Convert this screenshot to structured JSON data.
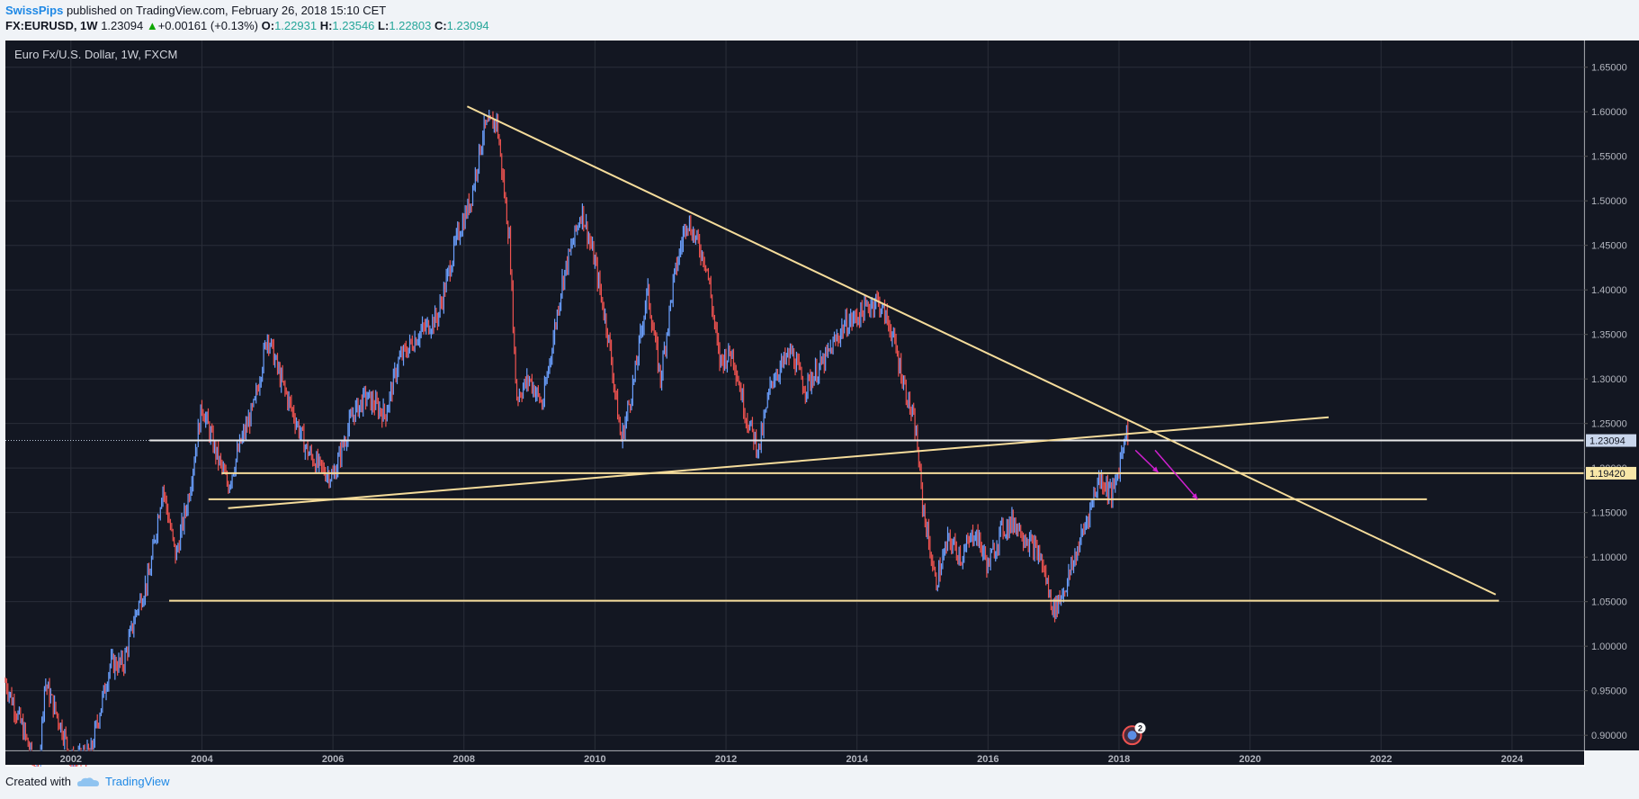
{
  "header": {
    "author": "SwissPips",
    "published_text": "published on TradingView.com, February 26, 2018 15:10 CET",
    "symbol": "FX:EURUSD, 1W",
    "last": "1.23094",
    "change": "+0.00161 (+0.13%)",
    "open_label": "O:",
    "open": "1.22931",
    "high_label": "H:",
    "high": "1.23546",
    "low_label": "L:",
    "low": "1.22803",
    "close_label": "C:",
    "close": "1.23094"
  },
  "footer": {
    "created_with": "Created with",
    "brand": "TradingView"
  },
  "colors": {
    "background": "#131722",
    "up": "#6ba0ff",
    "down": "#ef5350",
    "trendline": "#f5dc9b",
    "arrow": "#d020d0",
    "grid": "#2a2e39",
    "axis_text": "#b2b5be"
  },
  "chart_data": {
    "type": "candlestick",
    "title": "Euro Fx/U.S. Dollar, 1W, FXCM",
    "x_range": [
      2001.0,
      2025.1
    ],
    "ylim": [
      0.883,
      1.68
    ],
    "x_ticks": [
      "2002",
      "2004",
      "2006",
      "2008",
      "2010",
      "2012",
      "2014",
      "2016",
      "2018",
      "2020",
      "2022",
      "2024"
    ],
    "y_ticks": [
      "0.90000",
      "0.95000",
      "1.00000",
      "1.05000",
      "1.10000",
      "1.15000",
      "1.20000",
      "1.25000",
      "1.30000",
      "1.35000",
      "1.40000",
      "1.45000",
      "1.50000",
      "1.55000",
      "1.60000",
      "1.65000"
    ],
    "price_path": [
      [
        2001.0,
        0.96
      ],
      [
        2001.3,
        0.9
      ],
      [
        2001.5,
        0.85
      ],
      [
        2001.6,
        0.96
      ],
      [
        2001.9,
        0.9
      ],
      [
        2002.0,
        0.87
      ],
      [
        2002.3,
        0.88
      ],
      [
        2002.6,
        0.98
      ],
      [
        2002.8,
        0.98
      ],
      [
        2003.0,
        1.04
      ],
      [
        2003.2,
        1.08
      ],
      [
        2003.4,
        1.18
      ],
      [
        2003.6,
        1.1
      ],
      [
        2003.8,
        1.17
      ],
      [
        2004.0,
        1.27
      ],
      [
        2004.2,
        1.22
      ],
      [
        2004.4,
        1.18
      ],
      [
        2004.6,
        1.23
      ],
      [
        2004.8,
        1.27
      ],
      [
        2005.0,
        1.35
      ],
      [
        2005.2,
        1.3
      ],
      [
        2005.4,
        1.26
      ],
      [
        2005.6,
        1.22
      ],
      [
        2005.8,
        1.2
      ],
      [
        2006.0,
        1.19
      ],
      [
        2006.3,
        1.26
      ],
      [
        2006.5,
        1.28
      ],
      [
        2006.8,
        1.26
      ],
      [
        2007.0,
        1.32
      ],
      [
        2007.3,
        1.35
      ],
      [
        2007.6,
        1.37
      ],
      [
        2007.9,
        1.46
      ],
      [
        2008.1,
        1.5
      ],
      [
        2008.3,
        1.58
      ],
      [
        2008.5,
        1.59
      ],
      [
        2008.7,
        1.45
      ],
      [
        2008.8,
        1.28
      ],
      [
        2009.0,
        1.3
      ],
      [
        2009.2,
        1.27
      ],
      [
        2009.5,
        1.41
      ],
      [
        2009.8,
        1.49
      ],
      [
        2010.0,
        1.43
      ],
      [
        2010.2,
        1.35
      ],
      [
        2010.4,
        1.23
      ],
      [
        2010.6,
        1.3
      ],
      [
        2010.8,
        1.4
      ],
      [
        2011.0,
        1.3
      ],
      [
        2011.2,
        1.41
      ],
      [
        2011.4,
        1.48
      ],
      [
        2011.7,
        1.43
      ],
      [
        2011.9,
        1.32
      ],
      [
        2012.1,
        1.33
      ],
      [
        2012.3,
        1.26
      ],
      [
        2012.5,
        1.22
      ],
      [
        2012.7,
        1.3
      ],
      [
        2013.0,
        1.33
      ],
      [
        2013.2,
        1.29
      ],
      [
        2013.5,
        1.32
      ],
      [
        2013.8,
        1.36
      ],
      [
        2014.0,
        1.37
      ],
      [
        2014.3,
        1.39
      ],
      [
        2014.5,
        1.36
      ],
      [
        2014.7,
        1.3
      ],
      [
        2014.9,
        1.24
      ],
      [
        2015.0,
        1.16
      ],
      [
        2015.2,
        1.07
      ],
      [
        2015.4,
        1.12
      ],
      [
        2015.6,
        1.1
      ],
      [
        2015.8,
        1.13
      ],
      [
        2016.0,
        1.09
      ],
      [
        2016.2,
        1.13
      ],
      [
        2016.4,
        1.14
      ],
      [
        2016.6,
        1.12
      ],
      [
        2016.8,
        1.1
      ],
      [
        2017.0,
        1.04
      ],
      [
        2017.2,
        1.07
      ],
      [
        2017.5,
        1.14
      ],
      [
        2017.7,
        1.19
      ],
      [
        2017.9,
        1.17
      ],
      [
        2018.0,
        1.2
      ],
      [
        2018.1,
        1.245
      ],
      [
        2018.15,
        1.23094
      ]
    ],
    "levels": [
      {
        "price": 1.23094,
        "label": "1.23094",
        "from": 2003.2,
        "to": 2025.1,
        "color": "#e8e8e8"
      },
      {
        "price": 1.1942,
        "label": "1.19420",
        "from": 2004.3,
        "to": 2025.1,
        "color": "#f5dc9b"
      },
      {
        "price": 1.165,
        "from": 2004.1,
        "to": 2022.7,
        "color": "#f5dc9b"
      },
      {
        "price": 1.051,
        "from": 2003.5,
        "to": 2023.8,
        "color": "#f5dc9b"
      }
    ],
    "trendlines": [
      {
        "from": [
          2008.05,
          1.606
        ],
        "to": [
          2023.75,
          1.058
        ]
      },
      {
        "from": [
          2004.4,
          1.155
        ],
        "to": [
          2021.2,
          1.257
        ]
      }
    ],
    "arrows": [
      {
        "from": [
          2018.25,
          1.22
        ],
        "to": [
          2018.6,
          1.195
        ]
      },
      {
        "from": [
          2018.55,
          1.22
        ],
        "to": [
          2019.2,
          1.165
        ]
      }
    ],
    "event_marker": {
      "x": 2018.2,
      "y": 0.9,
      "badge": "2"
    }
  }
}
